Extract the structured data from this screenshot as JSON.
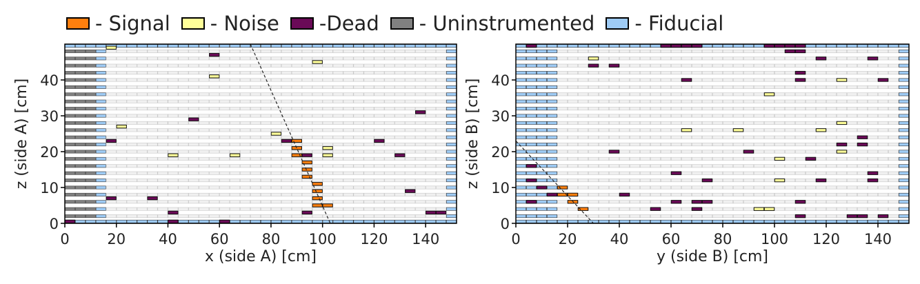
{
  "legend": [
    {
      "label": "- Signal",
      "color": "#ff7f0e"
    },
    {
      "label": "- Noise",
      "color": "#ffff99"
    },
    {
      "label": "-Dead",
      "color": "#6a0a57"
    },
    {
      "label": "- Uninstrumented",
      "color": "#808080"
    },
    {
      "label": "- Fiducial",
      "color": "#9ecbf5"
    }
  ],
  "chart_data": [
    {
      "type": "heatmap",
      "xlabel": "x (side A) [cm]",
      "ylabel": "z (side A) [cm]",
      "xlim": [
        0,
        152
      ],
      "ylim": [
        0,
        50
      ],
      "xticks": [
        0,
        20,
        40,
        60,
        80,
        100,
        120,
        140
      ],
      "yticks": [
        0,
        10,
        20,
        30,
        40
      ],
      "bar_width": 4,
      "layer_pitch": 2,
      "uninstrumented_x": [
        0,
        12
      ],
      "fiducial_left_x": [
        12,
        16
      ],
      "fiducial_right_x": [
        148,
        152
      ],
      "fiducial_top_z": 49.5,
      "fiducial_bottom_z": 0.5,
      "track": {
        "x": [
          72,
          103
        ],
        "z": [
          50,
          0
        ]
      },
      "hits": [
        {
          "x": 18,
          "z": 49,
          "state": "noise"
        },
        {
          "x": 58,
          "z": 47,
          "state": "dead"
        },
        {
          "x": 98,
          "z": 45,
          "state": "noise"
        },
        {
          "x": 58,
          "z": 41,
          "state": "noise"
        },
        {
          "x": 138,
          "z": 31,
          "state": "dead"
        },
        {
          "x": 50,
          "z": 29,
          "state": "dead"
        },
        {
          "x": 22,
          "z": 27,
          "state": "noise"
        },
        {
          "x": 82,
          "z": 25,
          "state": "noise"
        },
        {
          "x": 18,
          "z": 23,
          "state": "dead"
        },
        {
          "x": 86,
          "z": 23,
          "state": "dead"
        },
        {
          "x": 90,
          "z": 23,
          "state": "signal"
        },
        {
          "x": 122,
          "z": 23,
          "state": "dead"
        },
        {
          "x": 90,
          "z": 21,
          "state": "signal"
        },
        {
          "x": 102,
          "z": 21,
          "state": "noise"
        },
        {
          "x": 42,
          "z": 19,
          "state": "noise"
        },
        {
          "x": 66,
          "z": 19,
          "state": "noise"
        },
        {
          "x": 90,
          "z": 19,
          "state": "signal"
        },
        {
          "x": 94,
          "z": 19,
          "state": "dead"
        },
        {
          "x": 102,
          "z": 19,
          "state": "noise"
        },
        {
          "x": 130,
          "z": 19,
          "state": "dead"
        },
        {
          "x": 94,
          "z": 17,
          "state": "signal"
        },
        {
          "x": 94,
          "z": 15,
          "state": "signal"
        },
        {
          "x": 94,
          "z": 13,
          "state": "signal"
        },
        {
          "x": 98,
          "z": 11,
          "state": "signal"
        },
        {
          "x": 98,
          "z": 9,
          "state": "signal"
        },
        {
          "x": 134,
          "z": 9,
          "state": "dead"
        },
        {
          "x": 98,
          "z": 7,
          "state": "signal"
        },
        {
          "x": 18,
          "z": 7,
          "state": "dead"
        },
        {
          "x": 34,
          "z": 7,
          "state": "dead"
        },
        {
          "x": 98,
          "z": 5,
          "state": "signal"
        },
        {
          "x": 102,
          "z": 5,
          "state": "signal"
        },
        {
          "x": 42,
          "z": 3,
          "state": "dead"
        },
        {
          "x": 94,
          "z": 3,
          "state": "dead"
        },
        {
          "x": 142,
          "z": 3,
          "state": "dead"
        },
        {
          "x": 146,
          "z": 3,
          "state": "dead"
        },
        {
          "x": 2,
          "z": 0.5,
          "state": "dead"
        },
        {
          "x": 42,
          "z": 0.5,
          "state": "dead"
        },
        {
          "x": 62,
          "z": 0.5,
          "state": "dead"
        }
      ]
    },
    {
      "type": "heatmap",
      "xlabel": "y (side B) [cm]",
      "ylabel": "z (side B) [cm]",
      "xlim": [
        0,
        152
      ],
      "ylim": [
        0,
        50
      ],
      "xticks": [
        0,
        20,
        40,
        60,
        80,
        100,
        120,
        140
      ],
      "yticks": [
        0,
        10,
        20,
        30,
        40
      ],
      "bar_width": 4,
      "layer_pitch": 2,
      "uninstrumented_x": [
        0,
        0
      ],
      "fiducial_left_x": [
        0,
        16
      ],
      "fiducial_right_x": [
        148,
        152
      ],
      "fiducial_top_z": 49.5,
      "fiducial_bottom_z": 0.5,
      "track": {
        "x": [
          0,
          30
        ],
        "z": [
          23,
          0
        ]
      },
      "hits": [
        {
          "x": 6,
          "z": 49.5,
          "state": "dead"
        },
        {
          "x": 58,
          "z": 49.5,
          "state": "dead"
        },
        {
          "x": 62,
          "z": 49.5,
          "state": "dead"
        },
        {
          "x": 66,
          "z": 49.5,
          "state": "dead"
        },
        {
          "x": 70,
          "z": 49.5,
          "state": "dead"
        },
        {
          "x": 98,
          "z": 49.5,
          "state": "dead"
        },
        {
          "x": 102,
          "z": 49.5,
          "state": "dead"
        },
        {
          "x": 106,
          "z": 49.5,
          "state": "dead"
        },
        {
          "x": 110,
          "z": 49.5,
          "state": "dead"
        },
        {
          "x": 106,
          "z": 48,
          "state": "dead"
        },
        {
          "x": 110,
          "z": 48,
          "state": "dead"
        },
        {
          "x": 30,
          "z": 46,
          "state": "noise"
        },
        {
          "x": 118,
          "z": 46,
          "state": "dead"
        },
        {
          "x": 138,
          "z": 46,
          "state": "dead"
        },
        {
          "x": 30,
          "z": 44,
          "state": "dead"
        },
        {
          "x": 38,
          "z": 44,
          "state": "dead"
        },
        {
          "x": 110,
          "z": 42,
          "state": "dead"
        },
        {
          "x": 66,
          "z": 40,
          "state": "dead"
        },
        {
          "x": 110,
          "z": 40,
          "state": "dead"
        },
        {
          "x": 126,
          "z": 40,
          "state": "noise"
        },
        {
          "x": 142,
          "z": 40,
          "state": "dead"
        },
        {
          "x": 98,
          "z": 36,
          "state": "noise"
        },
        {
          "x": 126,
          "z": 28,
          "state": "noise"
        },
        {
          "x": 66,
          "z": 26,
          "state": "noise"
        },
        {
          "x": 86,
          "z": 26,
          "state": "noise"
        },
        {
          "x": 118,
          "z": 26,
          "state": "noise"
        },
        {
          "x": 134,
          "z": 24,
          "state": "dead"
        },
        {
          "x": 126,
          "z": 22,
          "state": "dead"
        },
        {
          "x": 134,
          "z": 22,
          "state": "dead"
        },
        {
          "x": 38,
          "z": 20,
          "state": "dead"
        },
        {
          "x": 90,
          "z": 20,
          "state": "dead"
        },
        {
          "x": 126,
          "z": 20,
          "state": "noise"
        },
        {
          "x": 102,
          "z": 18,
          "state": "noise"
        },
        {
          "x": 114,
          "z": 18,
          "state": "dead"
        },
        {
          "x": 6,
          "z": 16,
          "state": "dead"
        },
        {
          "x": 62,
          "z": 14,
          "state": "dead"
        },
        {
          "x": 138,
          "z": 14,
          "state": "dead"
        },
        {
          "x": 6,
          "z": 12,
          "state": "dead"
        },
        {
          "x": 74,
          "z": 12,
          "state": "dead"
        },
        {
          "x": 102,
          "z": 12,
          "state": "noise"
        },
        {
          "x": 118,
          "z": 12,
          "state": "dead"
        },
        {
          "x": 138,
          "z": 12,
          "state": "dead"
        },
        {
          "x": 10,
          "z": 10,
          "state": "dead"
        },
        {
          "x": 18,
          "z": 10,
          "state": "signal"
        },
        {
          "x": 14,
          "z": 8,
          "state": "dead"
        },
        {
          "x": 18,
          "z": 8,
          "state": "signal"
        },
        {
          "x": 22,
          "z": 8,
          "state": "signal"
        },
        {
          "x": 42,
          "z": 8,
          "state": "dead"
        },
        {
          "x": 6,
          "z": 6,
          "state": "dead"
        },
        {
          "x": 22,
          "z": 6,
          "state": "signal"
        },
        {
          "x": 62,
          "z": 6,
          "state": "dead"
        },
        {
          "x": 70,
          "z": 6,
          "state": "dead"
        },
        {
          "x": 74,
          "z": 6,
          "state": "dead"
        },
        {
          "x": 110,
          "z": 6,
          "state": "dead"
        },
        {
          "x": 26,
          "z": 4,
          "state": "signal"
        },
        {
          "x": 54,
          "z": 4,
          "state": "dead"
        },
        {
          "x": 70,
          "z": 4,
          "state": "dead"
        },
        {
          "x": 94,
          "z": 4,
          "state": "noise"
        },
        {
          "x": 98,
          "z": 4,
          "state": "noise"
        },
        {
          "x": 110,
          "z": 2,
          "state": "dead"
        },
        {
          "x": 130,
          "z": 2,
          "state": "dead"
        },
        {
          "x": 134,
          "z": 2,
          "state": "dead"
        },
        {
          "x": 142,
          "z": 2,
          "state": "dead"
        }
      ]
    }
  ]
}
